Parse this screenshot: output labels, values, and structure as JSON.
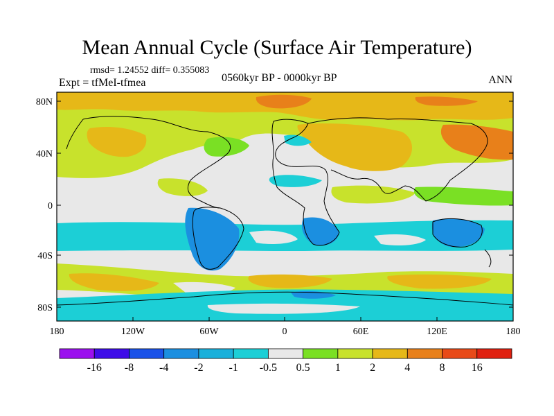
{
  "title": "Mean Annual Cycle (Surface Air Temperature)",
  "stats": "rmsd= 1.24552 diff= 0.355083",
  "experiment": "Expt = tfMeI-tfmea",
  "period": "0560kyr BP - 0000kyr BP",
  "season": "ANN",
  "map": {
    "lon_ticks": [
      "180",
      "120W",
      "60W",
      "0",
      "60E",
      "120E",
      "180"
    ],
    "lat_ticks": [
      "80N",
      "40N",
      "0",
      "40S",
      "80S"
    ]
  },
  "colorbar": {
    "labels": [
      "-16",
      "-8",
      "-4",
      "-2",
      "-1",
      "-0.5",
      "0.5",
      "1",
      "2",
      "4",
      "8",
      "16"
    ],
    "colors": [
      "#9b10ee",
      "#3e0ce8",
      "#1a52e8",
      "#1b8fe0",
      "#19b0da",
      "#1ccfd6",
      "#e8e8e8",
      "#7ae024",
      "#c8e22c",
      "#e6b818",
      "#e8801a",
      "#e84a18",
      "#e02010"
    ]
  }
}
